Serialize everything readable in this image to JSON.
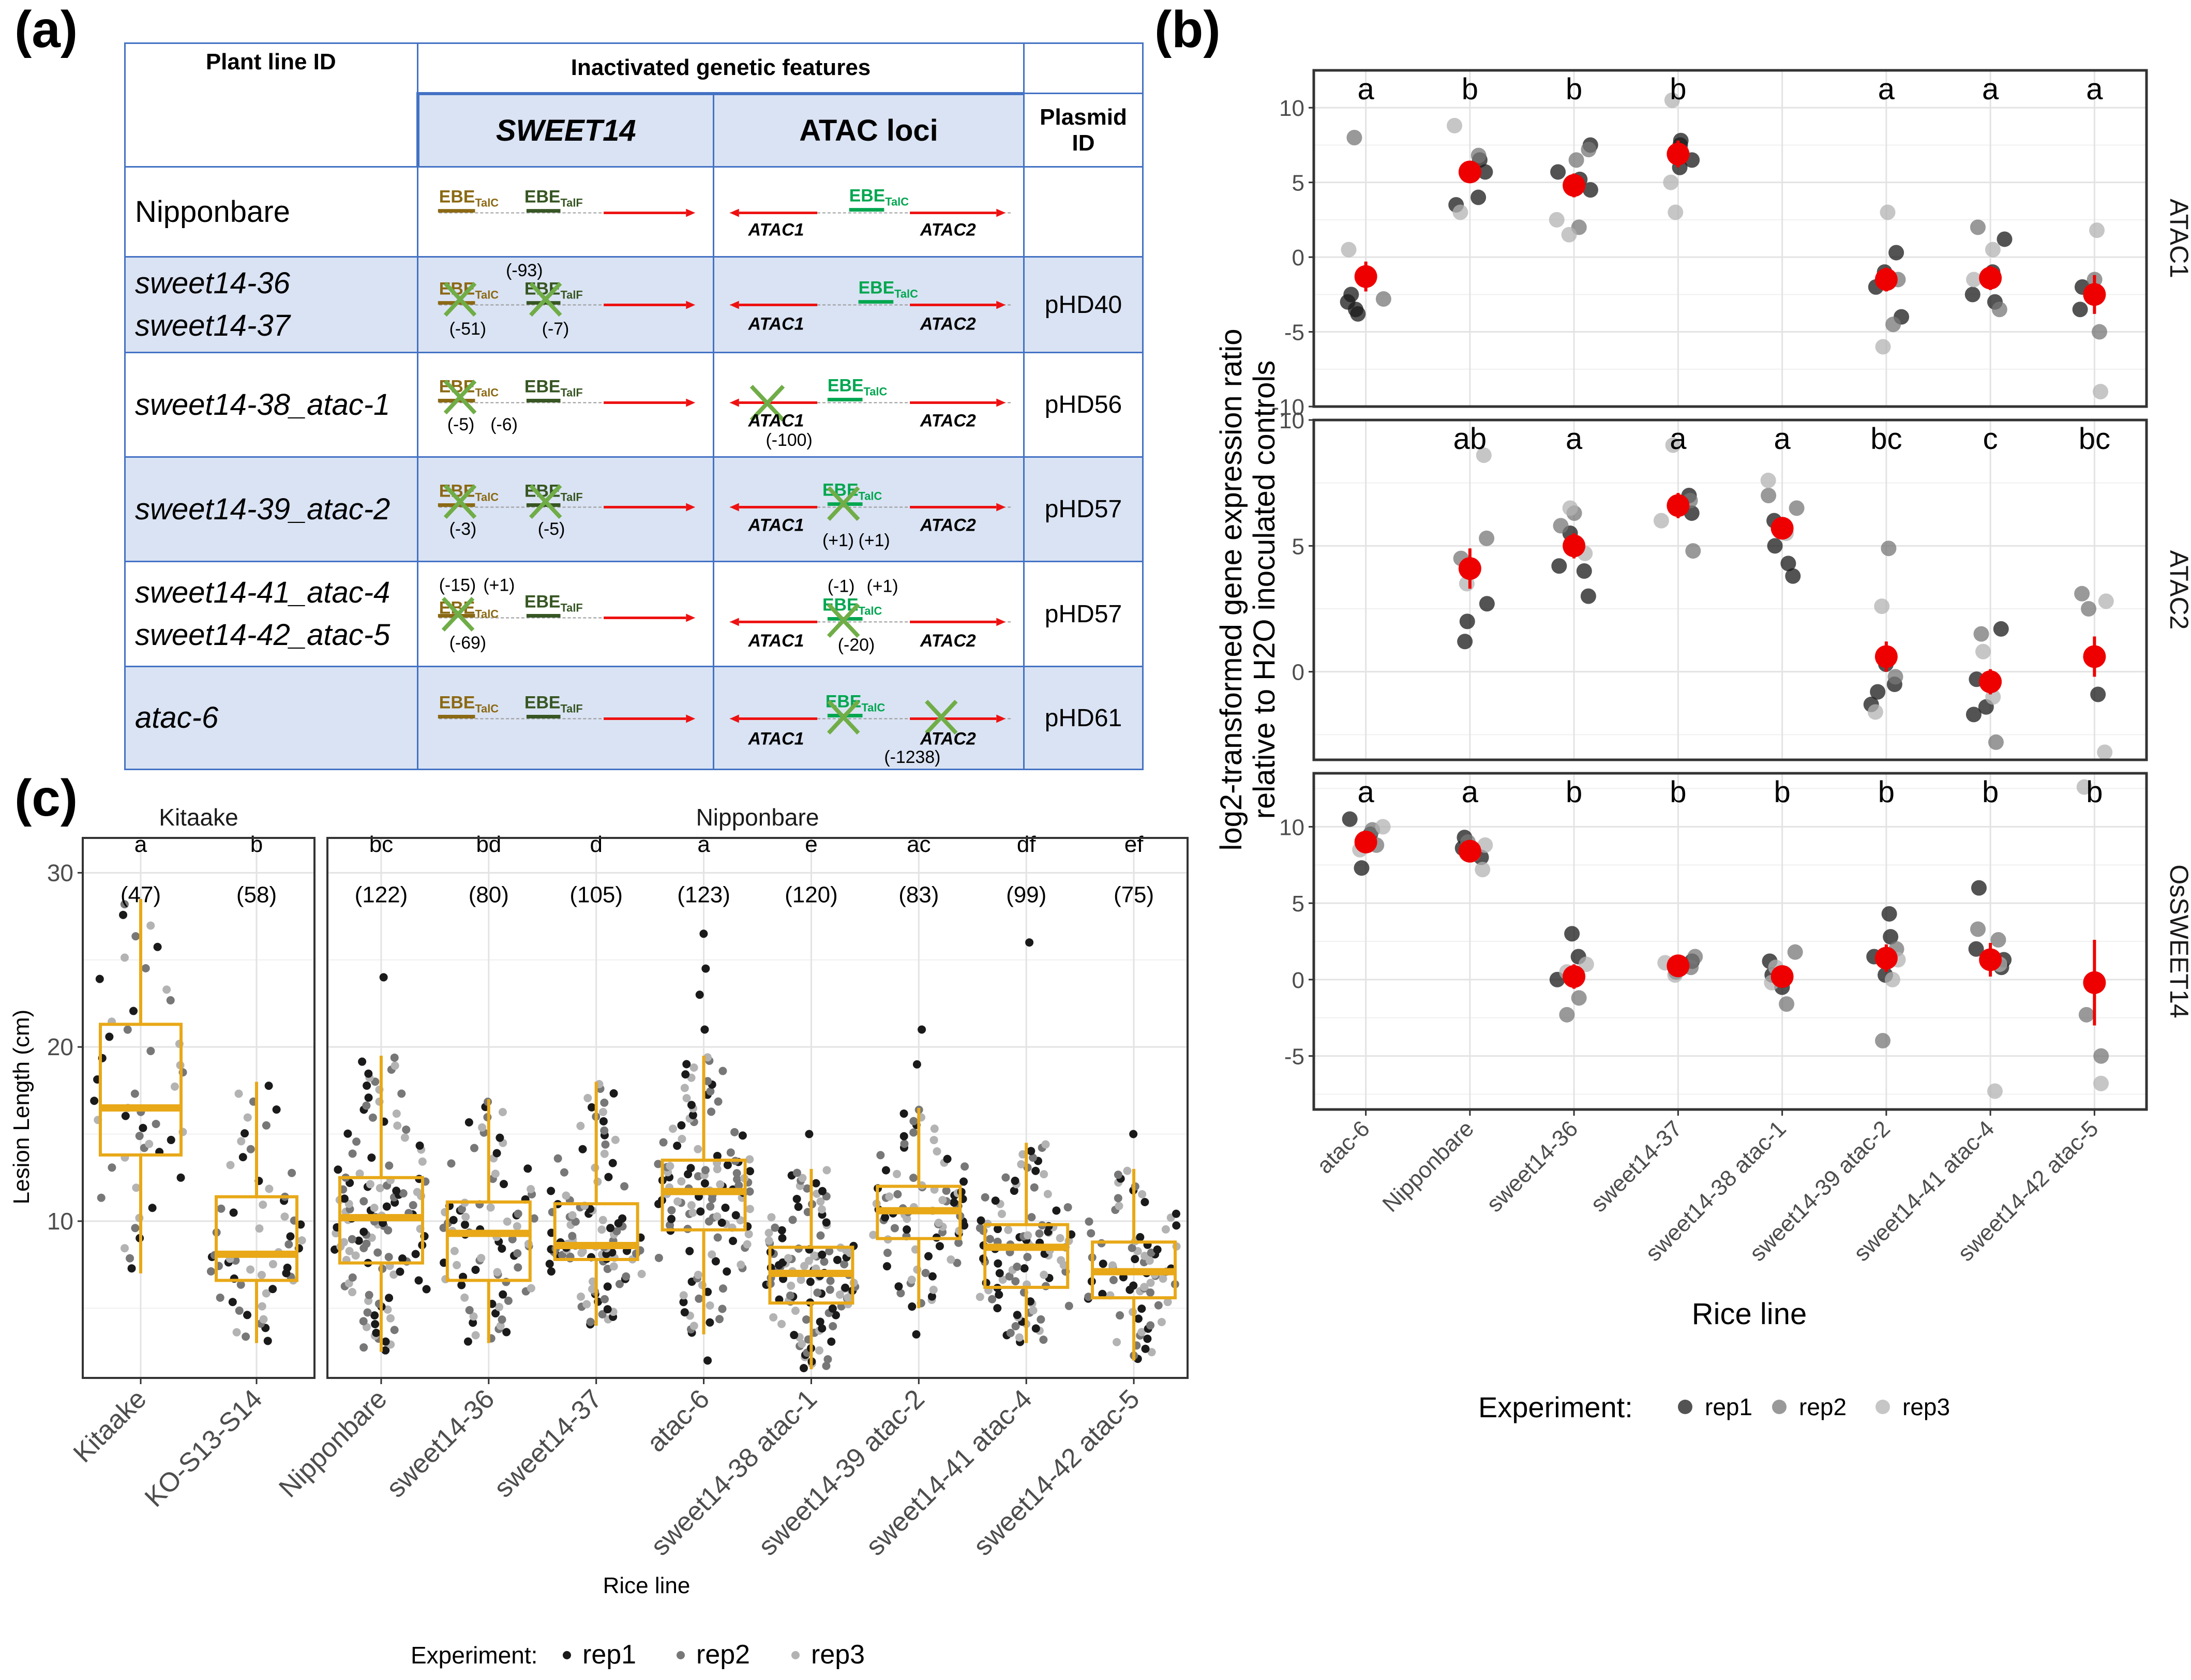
{
  "panel_labels": {
    "a": "(a)",
    "b": "(b)",
    "c": "(c)"
  },
  "table": {
    "header": {
      "col1": "Plant line ID",
      "col2": "Inactivated genetic features",
      "sub1": "SWEET14",
      "sub2": "ATAC loci",
      "col3": "Plasmid ID"
    },
    "gene_labels": {
      "ebe_c": "EBE",
      "ebe_c_sub": "TalC",
      "ebe_f": "EBE",
      "ebe_f_sub": "TalF",
      "atac1": "ATAC1",
      "atac2": "ATAC2"
    },
    "rows": [
      {
        "line1": "Nipponbare",
        "line2": "",
        "plasmid": "",
        "sweet_notes": [],
        "atac_notes": []
      },
      {
        "line1": "sweet14-36",
        "line2": "sweet14-37",
        "plasmid": "pHD40",
        "sweet_notes": [
          "(-93)",
          "(-51)",
          "(-7)"
        ],
        "atac_notes": []
      },
      {
        "line1": "sweet14-38_atac-1",
        "line2": "",
        "plasmid": "pHD56",
        "sweet_notes": [
          "(-5)",
          "(-6)"
        ],
        "atac_notes": [
          "(-100)"
        ]
      },
      {
        "line1": "sweet14-39_atac-2",
        "line2": "",
        "plasmid": "pHD57",
        "sweet_notes": [
          "(-3)",
          "(-5)"
        ],
        "atac_notes": [
          "(+1)",
          "(+1)"
        ]
      },
      {
        "line1": "sweet14-41_atac-4",
        "line2": "sweet14-42_atac-5",
        "plasmid": "pHD57",
        "sweet_notes": [
          "(-15)",
          "(+1)",
          "(-69)"
        ],
        "atac_notes": [
          "(-1)",
          "(+1)",
          "(-20)"
        ]
      },
      {
        "line1": "atac-6",
        "line2": "",
        "plasmid": "pHD61",
        "sweet_notes": [],
        "atac_notes": [
          "(-1238)"
        ]
      }
    ]
  },
  "colors": {
    "rep1": "#1a1a1a",
    "rep2": "#777777",
    "rep3": "#b3b3b3",
    "mean": "#ee0000",
    "box": "#e8a817",
    "ebe_c": "#00a650",
    "ebe_f": "#375623",
    "ebe_c_sweet": "#8b6914",
    "arrow": "#ee1111",
    "cross": "#70ad47",
    "table_border": "#4472c4"
  },
  "chart_data": [
    {
      "type": "scatter",
      "title": "log2-transformed gene expression ratio relative to H2O inoculated controls",
      "ylabel": "log2-transformed gene expression ratio",
      "ylabel2": "relative to H2O inoculated controls",
      "xlabel": "Rice line",
      "categories": [
        "atac-6",
        "Nipponbare",
        "sweet14-36",
        "sweet14-37",
        "sweet14-38 atac-1",
        "sweet14-39 atac-2",
        "sweet14-41 atac-4",
        "sweet14-42 atac-5"
      ],
      "legend": {
        "title": "Experiment:",
        "entries": [
          "rep1",
          "rep2",
          "rep3"
        ],
        "position": "bottom"
      },
      "facets": [
        {
          "name": "ATAC1",
          "ylim": [
            -10,
            12.5
          ],
          "yticks": [
            -10,
            -5,
            0,
            5,
            10
          ],
          "letters": [
            "a",
            "b",
            "b",
            "b",
            "",
            "a",
            "a",
            "a"
          ],
          "means": [
            -1.3,
            5.7,
            4.8,
            6.9,
            null,
            -1.5,
            -1.4,
            -2.5
          ],
          "err": [
            1.0,
            0.7,
            0.8,
            0.9,
            null,
            0.8,
            0.8,
            1.3
          ],
          "points": [
            [
              [
                -3.0,
                -3.5,
                -2.5,
                -3.8
              ],
              [
                8.0,
                -2.8
              ],
              [
                0.5
              ]
            ],
            [
              [
                5.7,
                4.0,
                3.5,
                6.5
              ],
              [
                6.8,
                5.5
              ],
              [
                8.8,
                3.0
              ]
            ],
            [
              [
                5.7,
                4.5,
                5.2,
                7.5
              ],
              [
                6.5,
                2.0,
                7.2
              ],
              [
                1.5,
                2.5
              ]
            ],
            [
              [
                7.5,
                6.5,
                7.8,
                6.0
              ],
              [
                7.0
              ],
              [
                10.5,
                5.0,
                3.0
              ]
            ],
            [
              [],
              [],
              []
            ],
            [
              [
                -1.0,
                -4.0,
                0.3,
                -2.0
              ],
              [
                -1.5,
                -4.5
              ],
              [
                3.0,
                -6.0
              ]
            ],
            [
              [
                -3.0,
                -2.5,
                1.2,
                -1.0
              ],
              [
                -3.5,
                2.0
              ],
              [
                0.5,
                -1.5
              ]
            ],
            [
              [
                -2.0,
                -3.5
              ],
              [
                -1.5,
                -5.0
              ],
              [
                1.8,
                -9.0
              ]
            ]
          ]
        },
        {
          "name": "ATAC2",
          "ylim": [
            -3.5,
            10
          ],
          "yticks": [
            0,
            5,
            10
          ],
          "letters": [
            "",
            "ab",
            "a",
            "a",
            "a",
            "bc",
            "c",
            "bc"
          ],
          "means": [
            null,
            4.1,
            5.0,
            6.6,
            5.7,
            0.6,
            -0.4,
            0.6
          ],
          "err": [
            null,
            0.8,
            0.5,
            0.5,
            0.4,
            0.6,
            0.5,
            0.8
          ],
          "points": [
            [
              [],
              [],
              []
            ],
            [
              [
                2.7,
                2.0,
                1.2
              ],
              [
                5.3,
                4.5
              ],
              [
                8.6,
                3.5
              ]
            ],
            [
              [
                4.0,
                3.0,
                5.5,
                4.2
              ],
              [
                5.8,
                6.3
              ],
              [
                6.5,
                4.7
              ]
            ],
            [
              [
                6.7,
                7.0,
                6.3
              ],
              [
                6.8,
                4.8
              ],
              [
                9.0,
                6.0
              ]
            ],
            [
              [
                4.3,
                3.8,
                5.0,
                6.0
              ],
              [
                7.0,
                6.5
              ],
              [
                7.6,
                5.5
              ]
            ],
            [
              [
                -0.5,
                -1.3,
                -0.8,
                0.3
              ],
              [
                -0.2,
                4.9
              ],
              [
                2.6,
                -1.6
              ]
            ],
            [
              [
                -1.7,
                -0.3,
                1.7,
                -1.4
              ],
              [
                -2.8,
                1.5
              ],
              [
                -1.0,
                0.8
              ]
            ],
            [
              [
                -0.9
              ],
              [
                2.5,
                3.1
              ],
              [
                -3.2,
                2.8
              ]
            ]
          ]
        },
        {
          "name": "OsSWEET14",
          "ylim": [
            -8.5,
            13.5
          ],
          "yticks": [
            -5,
            0,
            5,
            10
          ],
          "letters": [
            "a",
            "a",
            "b",
            "b",
            "b",
            "b",
            "b",
            "b"
          ],
          "means": [
            9.0,
            8.4,
            0.2,
            0.9,
            0.2,
            1.4,
            1.3,
            -0.2
          ],
          "err": [
            0.6,
            0.6,
            0.8,
            0.5,
            0.5,
            0.9,
            1.1,
            2.8
          ],
          "points": [
            [
              [
                10.5,
                7.3,
                9.5
              ],
              [
                8.8,
                9.8
              ],
              [
                8.5,
                10.0
              ]
            ],
            [
              [
                9.3,
                8.6,
                8.0
              ],
              [
                9.0,
                8.2
              ],
              [
                7.2,
                8.8
              ]
            ],
            [
              [
                3.0,
                1.5,
                0.0
              ],
              [
                -1.2,
                -2.3
              ],
              [
                0.5,
                1.0
              ]
            ],
            [
              [
                1.2,
                0.5
              ],
              [
                0.8,
                1.5
              ],
              [
                0.3,
                1.1
              ]
            ],
            [
              [
                1.2,
                0.3,
                -0.5
              ],
              [
                1.8,
                -1.6
              ],
              [
                0.8,
                -0.2
              ]
            ],
            [
              [
                4.3,
                2.8,
                1.5,
                0.3
              ],
              [
                -4.0,
                2.0
              ],
              [
                0.0,
                1.3
              ]
            ],
            [
              [
                6.0,
                2.0,
                1.3,
                0.8
              ],
              [
                3.3,
                2.6
              ],
              [
                -7.3,
                1.0
              ]
            ],
            [
              [],
              [
                -5.0,
                -2.3
              ],
              [
                12.6,
                -6.8
              ]
            ]
          ]
        }
      ]
    },
    {
      "type": "box",
      "ylabel": "Lesion Length (cm)",
      "xlabel": "Rice line",
      "ylim": [
        1,
        32
      ],
      "yticks": [
        10,
        20,
        30
      ],
      "legend": {
        "title": "Experiment:",
        "entries": [
          "rep1",
          "rep2",
          "rep3"
        ],
        "position": "bottom"
      },
      "facets": [
        {
          "name": "Kitaake",
          "groups": [
            {
              "label": "Kitaake",
              "letter": "a",
              "n": "(47)",
              "q1": 13.8,
              "median": 16.5,
              "q3": 21.3,
              "lower": 7.0,
              "upper": 28.5,
              "outliers": []
            },
            {
              "label": "KO-S13-S14",
              "letter": "b",
              "n": "(58)",
              "q1": 6.6,
              "median": 8.1,
              "q3": 11.4,
              "lower": 3.0,
              "upper": 18.0,
              "outliers": []
            }
          ]
        },
        {
          "name": "Nipponbare",
          "groups": [
            {
              "label": "Nipponbare",
              "letter": "bc",
              "n": "(122)",
              "q1": 7.6,
              "median": 10.2,
              "q3": 12.5,
              "lower": 2.5,
              "upper": 19.5,
              "outliers": [
                24.0
              ]
            },
            {
              "label": "sweet14-36",
              "letter": "bd",
              "n": "(80)",
              "q1": 6.6,
              "median": 9.3,
              "q3": 11.1,
              "lower": 3.0,
              "upper": 17.0,
              "outliers": []
            },
            {
              "label": "sweet14-37",
              "letter": "d",
              "n": "(105)",
              "q1": 7.8,
              "median": 8.6,
              "q3": 11.0,
              "lower": 4.0,
              "upper": 18.0,
              "outliers": []
            },
            {
              "label": "atac-6",
              "letter": "a",
              "n": "(123)",
              "q1": 9.5,
              "median": 11.7,
              "q3": 13.5,
              "lower": 3.5,
              "upper": 19.5,
              "outliers": [
                2.0,
                21.0,
                23.0,
                24.5,
                26.5
              ]
            },
            {
              "label": "sweet14-38 atac-1",
              "letter": "e",
              "n": "(120)",
              "q1": 5.3,
              "median": 7.0,
              "q3": 8.5,
              "lower": 1.5,
              "upper": 13.0,
              "outliers": [
                15.0
              ]
            },
            {
              "label": "sweet14-39 atac-2",
              "letter": "ac",
              "n": "(83)",
              "q1": 9.0,
              "median": 10.6,
              "q3": 12.0,
              "lower": 5.0,
              "upper": 16.5,
              "outliers": [
                3.5,
                19.0,
                21.0
              ]
            },
            {
              "label": "sweet14-41 atac-4",
              "letter": "df",
              "n": "(99)",
              "q1": 6.2,
              "median": 8.5,
              "q3": 9.8,
              "lower": 3.0,
              "upper": 14.5,
              "outliers": [
                26.0
              ]
            },
            {
              "label": "sweet14-42 atac-5",
              "letter": "ef",
              "n": "(75)",
              "q1": 5.6,
              "median": 7.1,
              "q3": 8.8,
              "lower": 2.0,
              "upper": 13.0,
              "outliers": [
                15.0
              ]
            }
          ]
        }
      ]
    }
  ]
}
